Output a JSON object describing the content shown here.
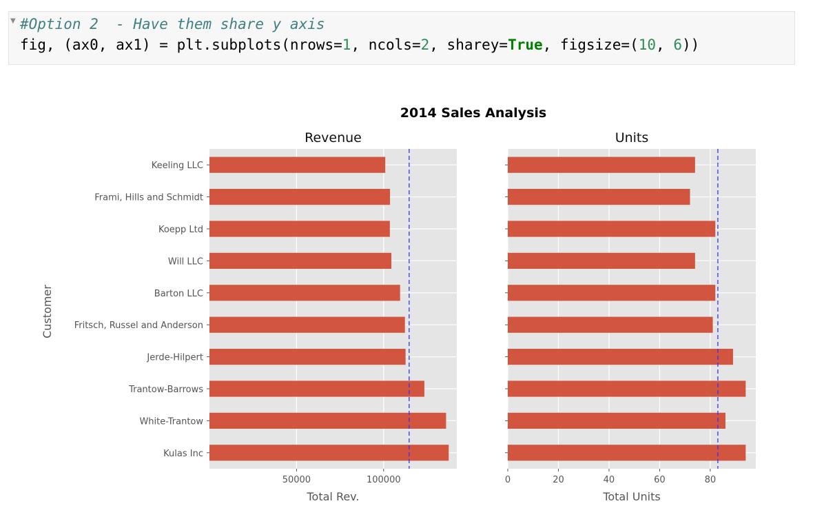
{
  "notebook_cell": {
    "comment": "#Option 2  - Have them share y axis",
    "code": {
      "p1": "fig, (ax0, ax1) = plt.subplots(nrows=",
      "n1": "1",
      "p2": ", ncols=",
      "n2": "2",
      "p3": ", sharey=",
      "kw": "True",
      "p4": ", figsize=(",
      "n3": "10",
      "p5": ", ",
      "n4": "6",
      "p6": "))"
    }
  },
  "colors": {
    "bar": "#d1553f",
    "mean_line": "#3333ff",
    "plot_bg": "#e5e5e5",
    "grid": "#ffffff"
  },
  "chart_data": {
    "type": "bar",
    "orientation": "horizontal",
    "title": "2014 Sales Analysis",
    "ylabel": "Customer",
    "categories": [
      "Keeling LLC",
      "Frami, Hills and Schmidt",
      "Koepp Ltd",
      "Will LLC",
      "Barton LLC",
      "Fritsch, Russel and Anderson",
      "Jerde-Hilpert",
      "Trantow-Barrows",
      "White-Trantow",
      "Kulas Inc"
    ],
    "subplots": [
      {
        "title": "Revenue",
        "xlabel": "Total Rev.",
        "xlim": [
          0,
          142000
        ],
        "xticks": [
          50000,
          100000
        ],
        "xtick_labels": [
          "50000",
          "100000"
        ],
        "values": [
          100934,
          103660,
          103569,
          104437,
          109438,
          112214,
          112591,
          123382,
          135841,
          137352
        ],
        "mean_line": 114650
      },
      {
        "title": "Units",
        "xlabel": "Total Units",
        "xlim": [
          0,
          98
        ],
        "xticks": [
          0,
          20,
          40,
          60,
          80
        ],
        "xtick_labels": [
          "0",
          "20",
          "40",
          "60",
          "80"
        ],
        "values": [
          74,
          72,
          82,
          74,
          82,
          81,
          89,
          94,
          86,
          94
        ],
        "mean_line": 83
      }
    ]
  }
}
